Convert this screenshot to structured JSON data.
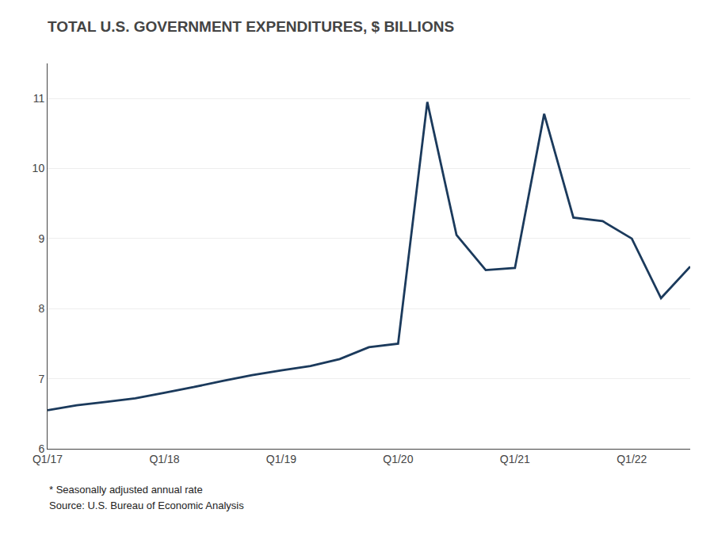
{
  "chart_data": {
    "type": "line",
    "title": "TOTAL U.S. GOVERNMENT EXPENDITURES, $ BILLIONS",
    "annotations": [
      "* Seasonally adjusted annual rate",
      "Source: U.S. Bureau of Economic Analysis"
    ],
    "categories": [
      "Q1/17",
      null,
      null,
      null,
      "Q1/18",
      null,
      null,
      null,
      "Q1/19",
      null,
      null,
      null,
      "Q1/20",
      null,
      null,
      null,
      "Q1/21",
      null,
      null,
      null,
      "Q1/22",
      null,
      null
    ],
    "values": [
      6.55,
      6.62,
      6.67,
      6.72,
      6.8,
      6.88,
      6.97,
      7.05,
      7.12,
      7.18,
      7.28,
      7.45,
      7.5,
      10.95,
      9.05,
      8.55,
      8.58,
      10.78,
      9.3,
      9.25,
      9.0,
      8.15,
      8.6
    ],
    "color": "#1b3a5c",
    "ylim": [
      6.0,
      11.5
    ],
    "yticks": [
      6,
      7,
      8,
      9,
      10,
      11
    ],
    "grid": true
  }
}
